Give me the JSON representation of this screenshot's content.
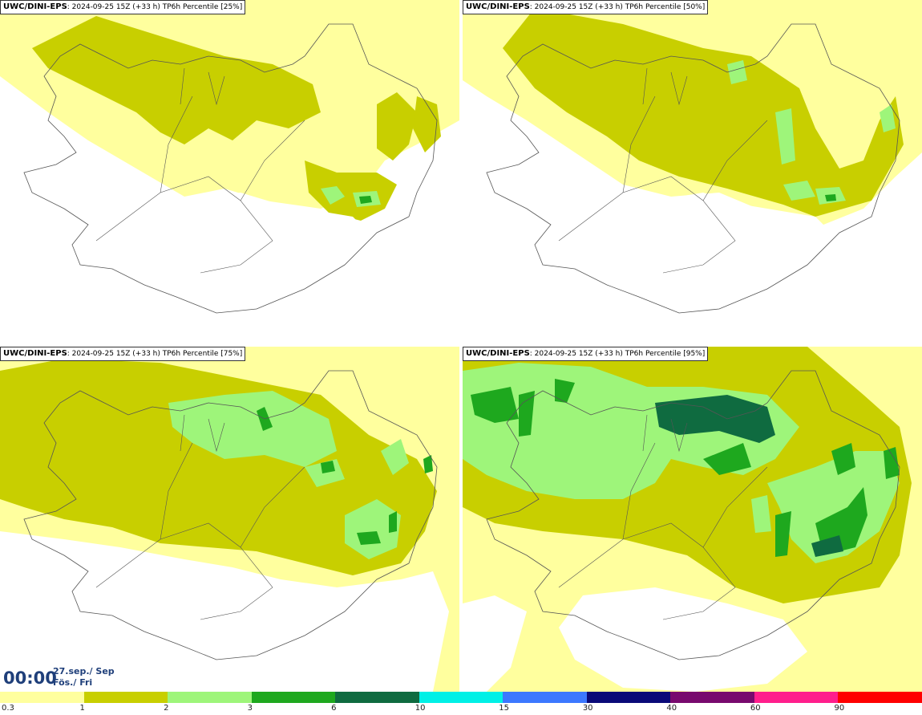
{
  "panels": [
    {
      "source": "UWC/DINI-EPS",
      "info": ": 2024-09-25 15Z (+33 h) TP6h Percentile [25%]"
    },
    {
      "source": "UWC/DINI-EPS",
      "info": ": 2024-09-25 15Z (+33 h) TP6h Percentile [50%]"
    },
    {
      "source": "UWC/DINI-EPS",
      "info": ": 2024-09-25 15Z (+33 h) TP6h Percentile [75%]"
    },
    {
      "source": "UWC/DINI-EPS",
      "info": ": 2024-09-25 15Z (+33 h) TP6h Percentile [95%]"
    }
  ],
  "valid_time": {
    "time": "00:00",
    "date_line1": "27.sep./ Sep",
    "date_line2": "Fös./ Fri"
  },
  "legend": {
    "colors": [
      "#ffff9e",
      "#c8cf00",
      "#9ef57a",
      "#1ea81e",
      "#0f6b40",
      "#00f0e6",
      "#3c78ff",
      "#0a0a78",
      "#780a6e",
      "#ff1e8c",
      "#ff0000"
    ],
    "tick_labels": [
      "0.3",
      "1",
      "2",
      "3",
      "6",
      "10",
      "15",
      "30",
      "40",
      "60",
      "90"
    ]
  },
  "colors": {
    "c1": "#ffff9e",
    "c2": "#c8cf00",
    "c3": "#9ef57a",
    "c4": "#1ea81e",
    "c5": "#0f6b40",
    "coast": "#555555"
  }
}
